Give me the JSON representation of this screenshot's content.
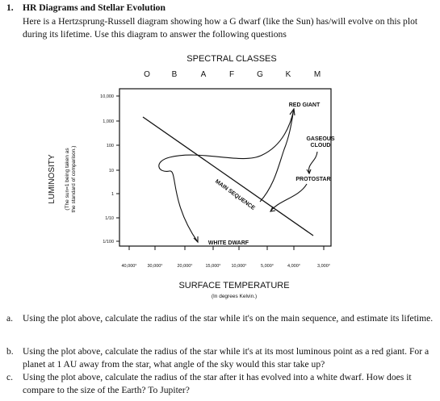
{
  "question": {
    "number": "1.",
    "title": "HR Diagrams and Stellar Evolution",
    "intro": "Here is a Hertzsprung-Russell diagram showing how a G dwarf (like the Sun) has/will evolve on this plot during its lifetime. Use this diagram to answer the following questions"
  },
  "diagram": {
    "top_label": "SPECTRAL CLASSES",
    "spectral_classes": [
      "O",
      "B",
      "A",
      "F",
      "G",
      "K",
      "M"
    ],
    "y_label": "LUMINOSITY",
    "y_sublabel": [
      "(The sun=1 being taken as",
      "the standard of comparison.)"
    ],
    "y_ticks": [
      "10,000",
      "1,000",
      "100",
      "10",
      "1",
      "1/10",
      "1/100"
    ],
    "x_ticks": [
      "40,000°",
      "30,000°",
      "20,000°",
      "15,000°",
      "10,000°",
      "5,000°",
      "4,000°",
      "3,000°"
    ],
    "x_label": "SURFACE TEMPERATURE",
    "x_sublabel": "(In degrees Kelvin.)",
    "annotations": {
      "red_giant": "RED GIANT",
      "gaseous_cloud": [
        "GASEOUS",
        "CLOUD"
      ],
      "protostar": "PROTOSTAR",
      "main_sequence": "MAIN SEQUENCE",
      "white_dwarf": "WHITE DWARF"
    }
  },
  "parts": [
    {
      "letter": "a.",
      "text": "Using the plot above, calculate the radius of the star while it's on the main sequence, and estimate its lifetime."
    },
    {
      "letter": "b.",
      "text": "Using the plot above, calculate the radius of the star while it's at its most luminous point as a red giant. For a planet at 1 AU away from the star, what angle of the sky would this star take up?"
    },
    {
      "letter": "c.",
      "text": "Using the plot above, calculate the radius of the star after it has evolved into a white dwarf. How does it compare to the size of the Earth? To Jupiter?"
    }
  ]
}
